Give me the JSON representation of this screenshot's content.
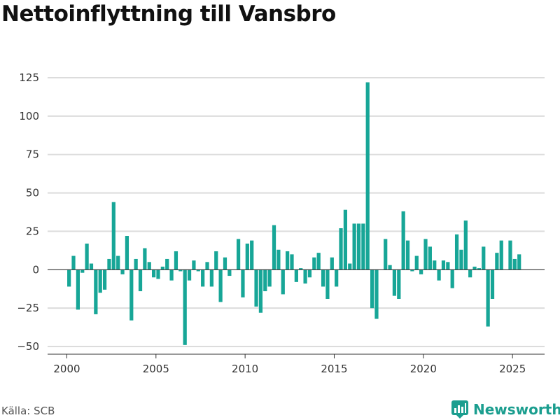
{
  "chart_data": {
    "type": "bar",
    "title": "Nettoinflyttning till Vansbro",
    "xlabel": "",
    "ylabel": "",
    "ylim": [
      -55,
      130
    ],
    "xlim": [
      1999.0,
      2026.8
    ],
    "yticks": [
      -50,
      -25,
      0,
      25,
      50,
      75,
      100,
      125
    ],
    "xticks": [
      2000,
      2005,
      2010,
      2015,
      2020,
      2025
    ],
    "grid": true,
    "bar_color": "#17a697",
    "frequency": "quarterly",
    "series": [
      {
        "x": [
          2000.125,
          2000.375,
          2000.625,
          2000.875,
          2001.125,
          2001.375,
          2001.625,
          2001.875,
          2002.125,
          2002.375,
          2002.625,
          2002.875,
          2003.125,
          2003.375,
          2003.625,
          2003.875,
          2004.125,
          2004.375,
          2004.625,
          2004.875,
          2005.125,
          2005.375,
          2005.625,
          2005.875,
          2006.125,
          2006.375,
          2006.625,
          2006.875,
          2007.125,
          2007.375,
          2007.625,
          2007.875,
          2008.125,
          2008.375,
          2008.625,
          2008.875,
          2009.125,
          2009.375,
          2009.625,
          2009.875,
          2010.125,
          2010.375,
          2010.625,
          2010.875,
          2011.125,
          2011.375,
          2011.625,
          2011.875,
          2012.125,
          2012.375,
          2012.625,
          2012.875,
          2013.125,
          2013.375,
          2013.625,
          2013.875,
          2014.125,
          2014.375,
          2014.625,
          2014.875,
          2015.125,
          2015.375,
          2015.625,
          2015.875,
          2016.125,
          2016.375,
          2016.625,
          2016.875,
          2017.125,
          2017.375,
          2017.625,
          2017.875,
          2018.125,
          2018.375,
          2018.625,
          2018.875,
          2019.125,
          2019.375,
          2019.625,
          2019.875,
          2020.125,
          2020.375,
          2020.625,
          2020.875,
          2021.125,
          2021.375,
          2021.625,
          2021.875,
          2022.125,
          2022.375,
          2022.625,
          2022.875,
          2023.125,
          2023.375,
          2023.625,
          2023.875,
          2024.125,
          2024.375,
          2024.625,
          2024.875,
          2025.125,
          2025.375
        ],
        "values": [
          -11,
          9,
          -26,
          -2,
          17,
          4,
          -29,
          -15,
          -13,
          7,
          44,
          9,
          -3,
          22,
          -33,
          7,
          -14,
          14,
          5,
          -5,
          -6,
          2,
          7,
          -7,
          12,
          -1,
          -49,
          -7,
          6,
          -1,
          -11,
          5,
          -11,
          12,
          -21,
          8,
          -4,
          0,
          20,
          -18,
          17,
          19,
          -24,
          -28,
          -14,
          -11,
          29,
          13,
          -16,
          12,
          10,
          -8,
          1,
          -9,
          -5,
          8,
          11,
          -11,
          -19,
          8,
          -11,
          27,
          39,
          4,
          30,
          30,
          30,
          122,
          -25,
          -32,
          0,
          20,
          3,
          -17,
          -19,
          38,
          19,
          -1,
          9,
          -3,
          20,
          15,
          6,
          -7,
          6,
          5,
          -12,
          23,
          13,
          32,
          -5,
          2,
          1,
          15,
          -37,
          -19,
          11,
          19,
          0,
          19,
          7,
          10
        ]
      }
    ]
  },
  "source": "Källa: SCB",
  "brand": "Newsworthy"
}
